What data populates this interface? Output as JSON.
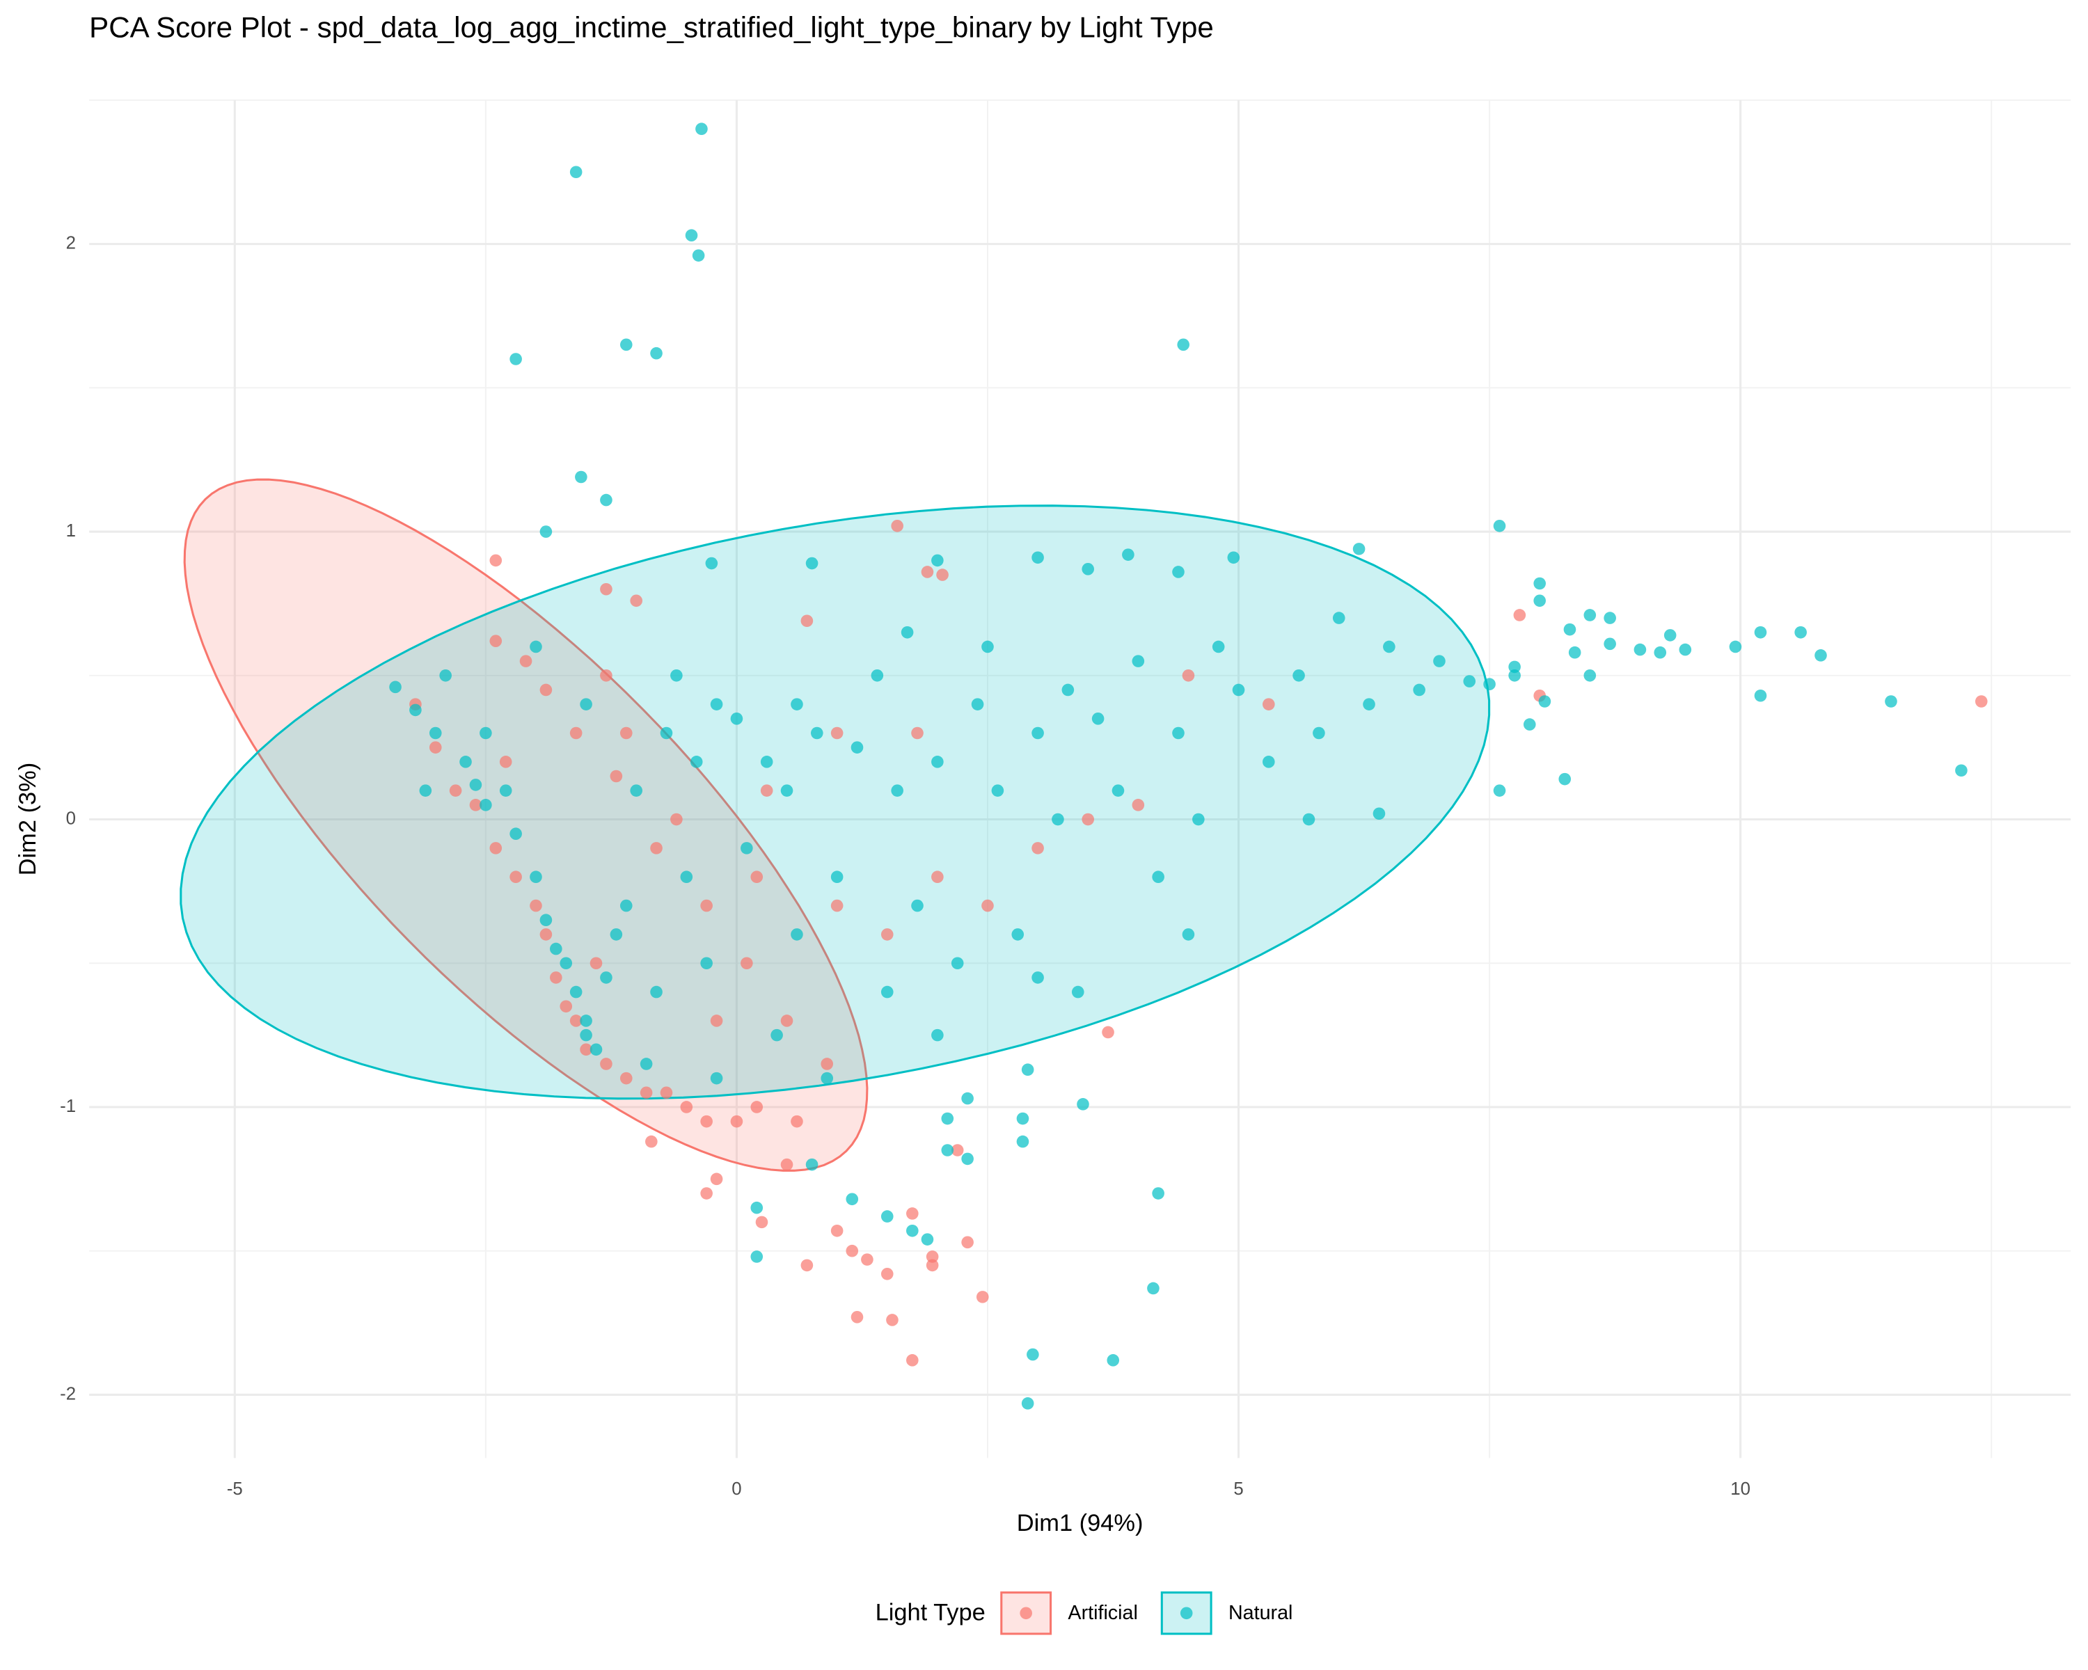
{
  "chart_data": {
    "type": "scatter",
    "title": "PCA Score Plot - spd_data_log_agg_inctime_stratified_light_type_binary by Light Type",
    "x_label": "Dim1 (94%)",
    "y_label": "Dim2 (3%)",
    "xlim": [
      -6.45,
      13.29
    ],
    "ylim": [
      -2.22,
      2.5
    ],
    "xticks": [
      -5,
      0,
      5,
      10
    ],
    "yticks": [
      -2,
      -1,
      0,
      1,
      2
    ],
    "x_minor_ticks": [
      -2.5,
      2.5,
      7.5,
      12.5
    ],
    "y_minor_ticks": [
      -1.5,
      -0.5,
      0.5,
      1.5,
      2.5
    ],
    "grid": true,
    "legend_title": "Light Type",
    "legend_position": "bottom",
    "series": [
      {
        "name": "Artificial",
        "color": "#F8766D",
        "ellipse": {
          "center": [
            -2.1,
            -0.02
          ],
          "axis1": [
            3.25,
            -1.11
          ],
          "axis2": [
            1.0,
            0.46
          ]
        },
        "x": [
          12.4,
          7.8,
          8.0,
          -2.4,
          -1.3,
          -1.0,
          1.6,
          1.9,
          2.05,
          0.7,
          3.7,
          -0.85,
          -0.3,
          -0.2,
          0.5,
          0.25,
          0.7,
          1.0,
          1.15,
          1.3,
          1.5,
          1.75,
          1.95,
          1.95,
          2.3,
          2.45,
          1.2,
          1.55,
          1.75,
          2.2,
          -3.2,
          -3.0,
          -2.8,
          -2.6,
          -2.4,
          -2.2,
          -2.0,
          -1.9,
          -1.8,
          -1.7,
          -1.6,
          -1.5,
          -1.3,
          -1.1,
          -0.9,
          -0.7,
          -0.5,
          -0.3,
          0.0,
          0.2,
          0.6,
          0.9,
          0.5,
          0.1,
          -0.3,
          -0.8,
          -1.2,
          -1.6,
          -2.1,
          -2.4,
          -1.9,
          -1.3,
          -1.1,
          -0.6,
          0.2,
          1.0,
          1.5,
          2.0,
          2.5,
          3.0,
          3.5,
          4.0,
          1.0,
          0.3,
          -0.2,
          -1.4,
          -2.3,
          4.5,
          5.3,
          1.8
        ],
        "y": [
          0.41,
          0.71,
          0.43,
          0.9,
          0.8,
          0.76,
          1.02,
          0.86,
          0.85,
          0.69,
          -0.74,
          -1.12,
          -1.3,
          -1.25,
          -1.2,
          -1.4,
          -1.55,
          -1.43,
          -1.5,
          -1.53,
          -1.58,
          -1.37,
          -1.55,
          -1.52,
          -1.47,
          -1.66,
          -1.73,
          -1.74,
          -1.88,
          -1.15,
          0.4,
          0.25,
          0.1,
          0.05,
          -0.1,
          -0.2,
          -0.3,
          -0.4,
          -0.55,
          -0.65,
          -0.7,
          -0.8,
          -0.85,
          -0.9,
          -0.95,
          -0.95,
          -1.0,
          -1.05,
          -1.05,
          -1.0,
          -1.05,
          -0.85,
          -0.7,
          -0.5,
          -0.3,
          -0.1,
          0.15,
          0.3,
          0.55,
          0.62,
          0.45,
          0.5,
          0.3,
          0.0,
          -0.2,
          -0.3,
          -0.4,
          -0.2,
          -0.3,
          -0.1,
          0.0,
          0.05,
          0.3,
          0.1,
          -0.7,
          -0.5,
          0.2,
          0.5,
          0.4,
          0.3
        ]
      },
      {
        "name": "Natural",
        "color": "#00BFC4",
        "ellipse": {
          "center": [
            0.98,
            0.06
          ],
          "axis1": [
            6.5,
            0.25
          ],
          "axis2": [
            0.5,
            1.0
          ]
        },
        "x": [
          -1.6,
          -0.35,
          -0.45,
          -0.38,
          -2.2,
          -1.1,
          -0.8,
          4.45,
          -1.55,
          -1.3,
          -1.9,
          7.6,
          12.2,
          11.5,
          10.8,
          10.6,
          10.2,
          10.2,
          9.95,
          9.45,
          9.3,
          9.2,
          9.0,
          8.7,
          8.7,
          8.5,
          8.5,
          8.3,
          8.35,
          8.25,
          8.0,
          8.0,
          8.05,
          7.9,
          7.75,
          7.75,
          7.6,
          7.5,
          7.3,
          6.2,
          4.95,
          3.0,
          2.0,
          3.5,
          4.4,
          3.9,
          -0.25,
          0.75,
          2.9,
          3.45,
          2.85,
          2.3,
          2.1,
          2.85,
          2.1,
          2.3,
          4.2,
          4.15,
          2.95,
          3.75,
          2.9,
          1.75,
          1.9,
          1.5,
          0.2,
          0.2,
          0.75,
          1.15,
          -3.4,
          -3.2,
          -3.0,
          -2.9,
          -2.7,
          -2.6,
          -2.5,
          -2.3,
          -2.2,
          -2.0,
          -1.9,
          -1.8,
          -1.7,
          -1.6,
          -1.5,
          -1.5,
          -1.4,
          -1.3,
          -1.2,
          -1.1,
          -1.0,
          -0.9,
          -0.8,
          -0.7,
          -0.5,
          -0.4,
          -0.3,
          -0.2,
          0.0,
          0.1,
          0.3,
          0.5,
          0.6,
          0.8,
          1.0,
          1.2,
          1.4,
          1.6,
          1.8,
          2.0,
          2.2,
          2.4,
          2.6,
          2.8,
          3.0,
          3.2,
          3.4,
          3.6,
          3.8,
          4.0,
          4.2,
          4.4,
          4.6,
          4.8,
          5.0,
          5.3,
          5.6,
          5.8,
          6.0,
          6.3,
          6.5,
          6.8,
          7.0,
          5.7,
          6.4,
          4.5,
          3.0,
          2.0,
          1.5,
          0.9,
          0.4,
          -0.2,
          -2.0,
          -1.5,
          -2.5,
          -3.1,
          1.7,
          2.5,
          3.3,
          0.6,
          -0.6
        ],
        "y": [
          2.25,
          2.4,
          2.03,
          1.96,
          1.6,
          1.65,
          1.62,
          1.65,
          1.19,
          1.11,
          1.0,
          1.02,
          0.17,
          0.41,
          0.57,
          0.65,
          0.65,
          0.43,
          0.6,
          0.59,
          0.64,
          0.58,
          0.59,
          0.61,
          0.7,
          0.5,
          0.71,
          0.66,
          0.58,
          0.14,
          0.82,
          0.76,
          0.41,
          0.33,
          0.53,
          0.5,
          0.1,
          0.47,
          0.48,
          0.94,
          0.91,
          0.91,
          0.9,
          0.87,
          0.86,
          0.92,
          0.89,
          0.89,
          -0.87,
          -0.99,
          -1.04,
          -0.97,
          -1.04,
          -1.12,
          -1.15,
          -1.18,
          -1.3,
          -1.63,
          -1.86,
          -1.88,
          -2.03,
          -1.43,
          -1.46,
          -1.38,
          -1.52,
          -1.35,
          -1.2,
          -1.32,
          0.46,
          0.38,
          0.3,
          0.5,
          0.2,
          0.12,
          0.05,
          0.1,
          -0.05,
          -0.2,
          -0.35,
          -0.45,
          -0.5,
          -0.6,
          -0.7,
          -0.75,
          -0.8,
          -0.55,
          -0.4,
          -0.3,
          0.1,
          -0.85,
          -0.6,
          0.3,
          -0.2,
          0.2,
          -0.5,
          0.4,
          0.35,
          -0.1,
          0.2,
          0.1,
          -0.4,
          0.3,
          -0.2,
          0.25,
          0.5,
          0.1,
          -0.3,
          0.2,
          -0.5,
          0.4,
          0.1,
          -0.4,
          0.3,
          0.0,
          -0.6,
          0.35,
          0.1,
          0.55,
          -0.2,
          0.3,
          0.0,
          0.6,
          0.45,
          0.2,
          0.5,
          0.3,
          0.7,
          0.4,
          0.6,
          0.45,
          0.55,
          0.0,
          0.02,
          -0.4,
          -0.55,
          -0.75,
          -0.6,
          -0.9,
          -0.75,
          -0.9,
          0.6,
          0.4,
          0.3,
          0.1,
          0.65,
          0.6,
          0.45,
          0.4,
          0.5
        ]
      }
    ]
  }
}
